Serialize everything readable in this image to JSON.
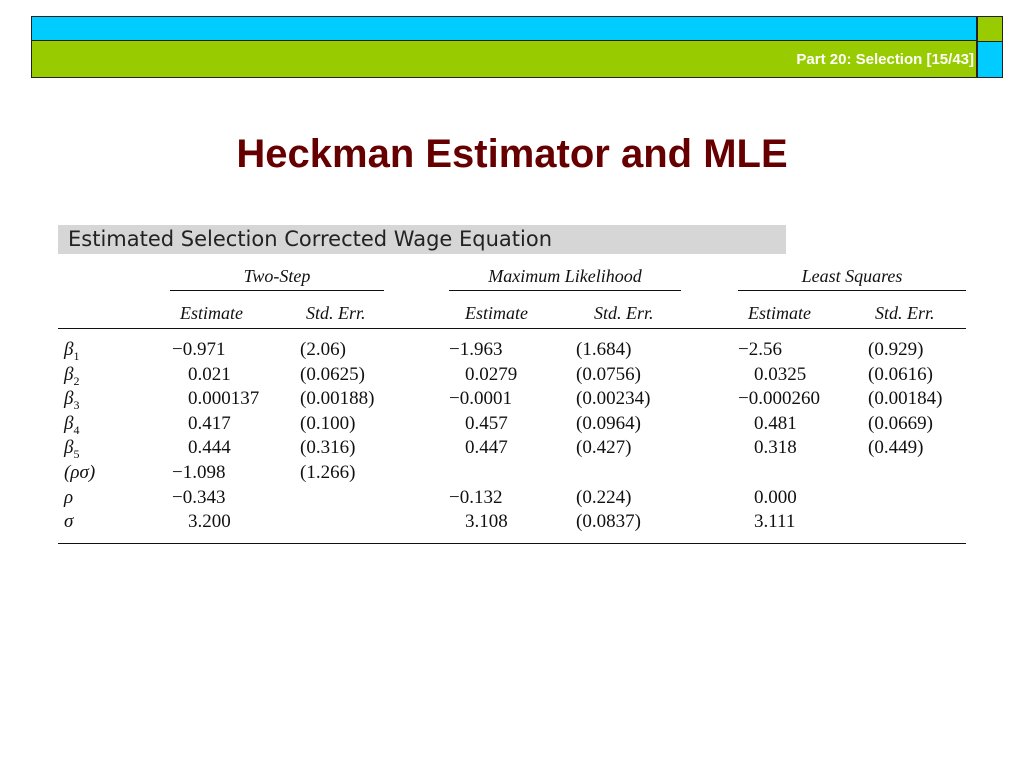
{
  "header": {
    "part_label": "Part 20: Selection [15/43]"
  },
  "slide": {
    "title": "Heckman Estimator and MLE"
  },
  "table": {
    "caption": "Estimated Selection Corrected Wage Equation",
    "groups": [
      "Two-Step",
      "Maximum Likelihood",
      "Least Squares"
    ],
    "subheaders": [
      "Estimate",
      "Std. Err.",
      "Estimate",
      "Std. Err.",
      "Estimate",
      "Std. Err."
    ],
    "rows": [
      {
        "sym": "β",
        "sub": "1",
        "v": [
          "−0.971",
          "(2.06)",
          "−1.963",
          "(1.684)",
          "−2.56",
          "(0.929)"
        ]
      },
      {
        "sym": "β",
        "sub": "2",
        "v": [
          "0.021",
          "(0.0625)",
          "0.0279",
          "(0.0756)",
          "0.0325",
          "(0.0616)"
        ]
      },
      {
        "sym": "β",
        "sub": "3",
        "v": [
          "0.000137",
          "(0.00188)",
          "−0.0001",
          "(0.00234)",
          "−0.000260",
          "(0.00184)"
        ]
      },
      {
        "sym": "β",
        "sub": "4",
        "v": [
          "0.417",
          "(0.100)",
          "0.457",
          "(0.0964)",
          "0.481",
          "(0.0669)"
        ]
      },
      {
        "sym": "β",
        "sub": "5",
        "v": [
          "0.444",
          "(0.316)",
          "0.447",
          "(0.427)",
          "0.318",
          "(0.449)"
        ]
      },
      {
        "sym": "(ρσ)",
        "sub": "",
        "v": [
          "−1.098",
          "(1.266)",
          "",
          "",
          "",
          ""
        ]
      },
      {
        "sym": "ρ",
        "sub": "",
        "v": [
          "−0.343",
          "",
          "−0.132",
          "(0.224)",
          "0.000",
          ""
        ]
      },
      {
        "sym": "σ",
        "sub": "",
        "v": [
          "3.200",
          "",
          "3.108",
          "(0.0837)",
          "3.111",
          ""
        ]
      }
    ]
  }
}
